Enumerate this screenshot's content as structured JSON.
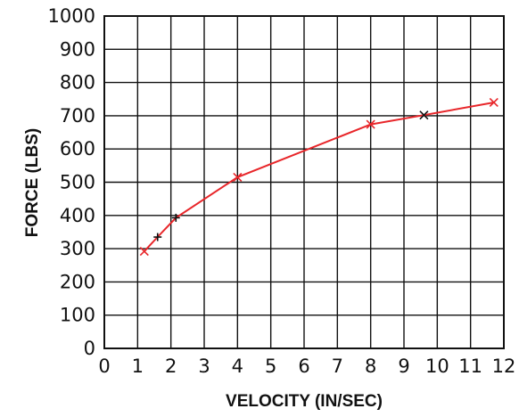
{
  "chart_data": {
    "type": "line",
    "title": "",
    "xlabel": "VELOCITY (IN/SEC)",
    "ylabel": "FORCE (LBS)",
    "xlim": [
      0,
      12
    ],
    "ylim": [
      0,
      1000
    ],
    "x_ticks": [
      "0",
      "1",
      "2",
      "3",
      "4",
      "5",
      "6",
      "7",
      "8",
      "9",
      "10",
      "11",
      "12"
    ],
    "y_ticks": [
      "0",
      "100",
      "200",
      "300",
      "400",
      "500",
      "600",
      "700",
      "800",
      "900",
      "1000"
    ],
    "grid": true,
    "legend": "none",
    "line_color": "#e8262a",
    "marker_color": "#e8262a",
    "alt_marker_color": "#111111",
    "series": [
      {
        "points": [
          {
            "x": 1.2,
            "y": 292,
            "marker": "x",
            "color": "#e8262a"
          },
          {
            "x": 1.6,
            "y": 335,
            "marker": "+",
            "color": "#111111"
          },
          {
            "x": 2.15,
            "y": 393,
            "marker": "+",
            "color": "#111111"
          },
          {
            "x": 4.0,
            "y": 515,
            "marker": "x",
            "color": "#e8262a"
          },
          {
            "x": 8.0,
            "y": 674,
            "marker": "x",
            "color": "#e8262a"
          },
          {
            "x": 9.6,
            "y": 702,
            "marker": "x",
            "color": "#111111"
          },
          {
            "x": 11.7,
            "y": 740,
            "marker": "x",
            "color": "#e8262a"
          }
        ]
      }
    ]
  }
}
